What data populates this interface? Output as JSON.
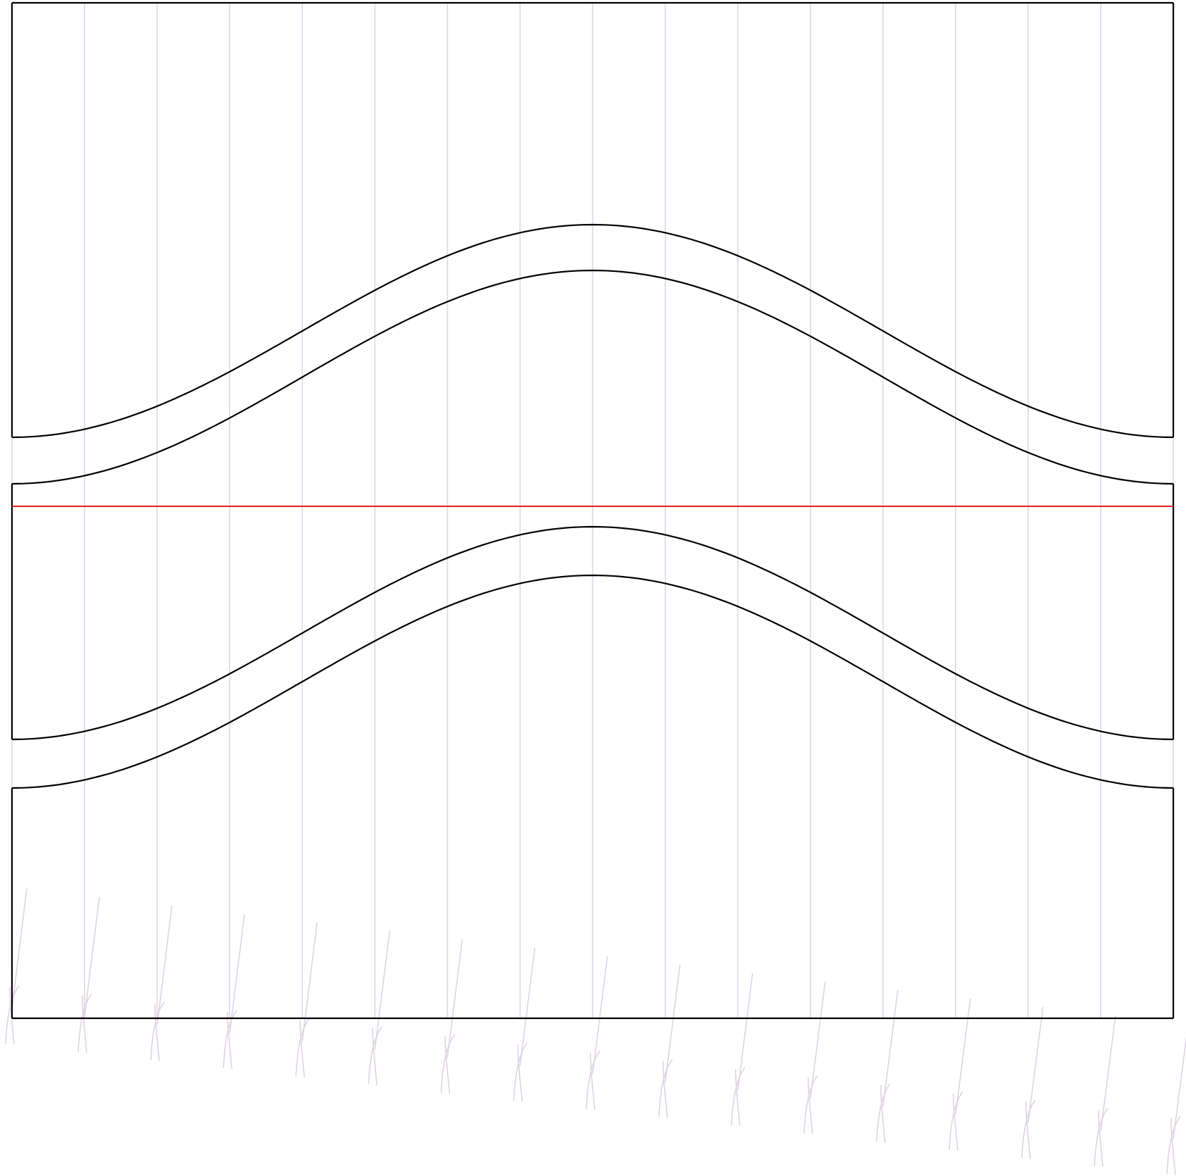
{
  "colors": {
    "background": "#ffffff",
    "outline": "#000000",
    "guide_lines": "#ddd6e6",
    "arrows": "#ddd3e4",
    "center_line": "#e02020"
  },
  "diagram": {
    "description_free": true,
    "vertical_guide_count": 17,
    "arrow_count": 17,
    "curve_count": 4,
    "has_center_line": true
  }
}
